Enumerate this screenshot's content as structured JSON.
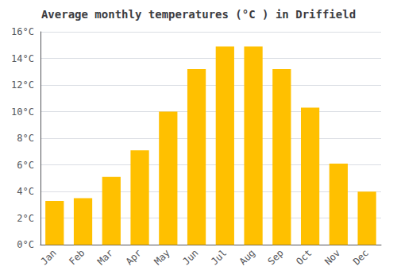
{
  "chart_data": {
    "type": "bar",
    "title": "Average monthly temperatures (°C ) in Driffield",
    "categories": [
      "Jan",
      "Feb",
      "Mar",
      "Apr",
      "May",
      "Jun",
      "Jul",
      "Aug",
      "Sep",
      "Oct",
      "Nov",
      "Dec"
    ],
    "values": [
      3.3,
      3.5,
      5.1,
      7.1,
      10.0,
      13.2,
      14.9,
      14.9,
      13.2,
      10.3,
      6.1,
      4.0
    ],
    "color": "#FFC000",
    "ylim": [
      0,
      16
    ],
    "yticks": [
      {
        "value": 0,
        "label": "0°C"
      },
      {
        "value": 2,
        "label": "2°C"
      },
      {
        "value": 4,
        "label": "4°C"
      },
      {
        "value": 6,
        "label": "6°C"
      },
      {
        "value": 8,
        "label": "8°C"
      },
      {
        "value": 10,
        "label": "10°C"
      },
      {
        "value": 12,
        "label": "12°C"
      },
      {
        "value": 14,
        "label": "14°C"
      },
      {
        "value": 16,
        "label": "16°C"
      }
    ],
    "grid": true
  }
}
